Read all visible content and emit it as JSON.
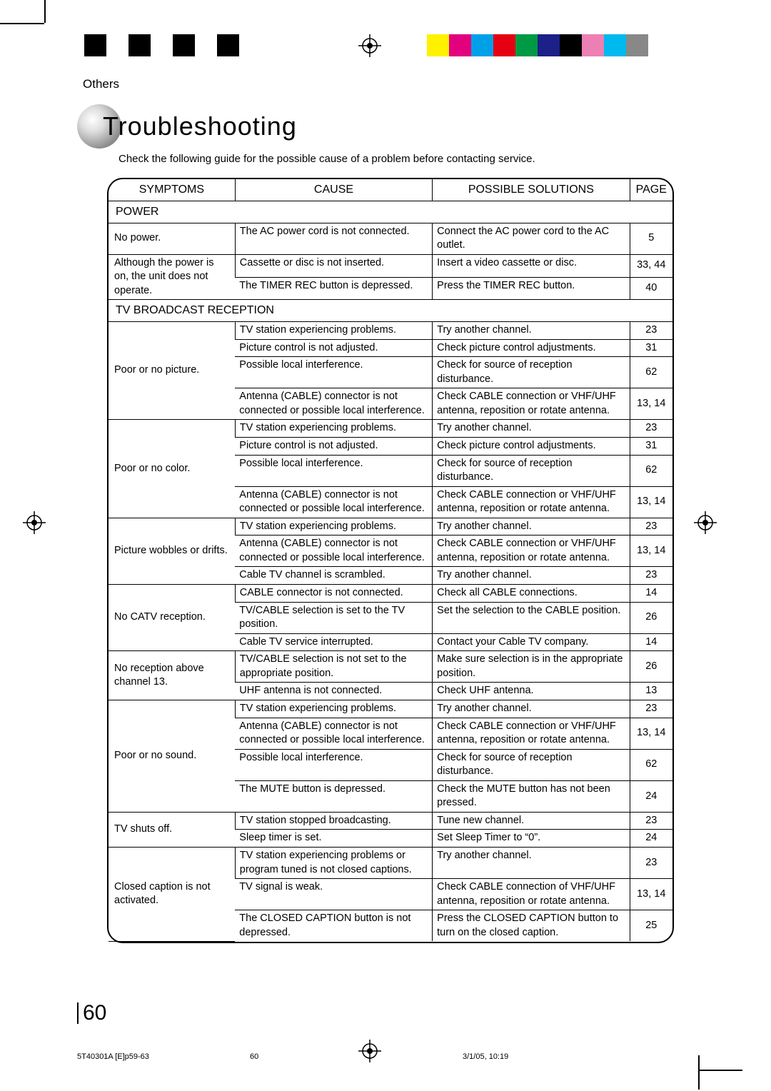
{
  "section_label": "Others",
  "title": "Troubleshooting",
  "intro": "Check the following guide for the possible cause of a problem before contacting service.",
  "headers": {
    "symptoms": "SYMPTOMS",
    "cause": "CAUSE",
    "solutions": "POSSIBLE SOLUTIONS",
    "page": "PAGE"
  },
  "sections": [
    {
      "name": "POWER",
      "rows": [
        {
          "symptom": "No power.",
          "symptom_rowspan": 1,
          "cause": "The AC power cord is not connected.",
          "solution": "Connect the AC power cord to the AC outlet.",
          "page": "5"
        },
        {
          "symptom": "Although the power is on, the unit does not operate.",
          "symptom_rowspan": 2,
          "cause": "Cassette or disc is not inserted.",
          "solution": "Insert a video cassette or disc.",
          "page": "33, 44"
        },
        {
          "cause": "The TIMER REC button is depressed.",
          "solution": "Press the TIMER REC button.",
          "page": "40"
        }
      ]
    },
    {
      "name": "TV BROADCAST RECEPTION",
      "rows": [
        {
          "symptom": "Poor or no picture.",
          "symptom_rowspan": 4,
          "cause": "TV station experiencing problems.",
          "solution": "Try another channel.",
          "page": "23"
        },
        {
          "cause": "Picture control is not adjusted.",
          "solution": "Check picture control adjustments.",
          "page": "31"
        },
        {
          "cause": "Possible local interference.",
          "solution": "Check for source of reception disturbance.",
          "page": "62"
        },
        {
          "cause": "Antenna (CABLE) connector is not connected or possible local interference.",
          "solution": "Check CABLE connection or VHF/UHF antenna, reposition or rotate antenna.",
          "page": "13, 14"
        },
        {
          "symptom": "Poor or no color.",
          "symptom_rowspan": 4,
          "cause": "TV station experiencing problems.",
          "solution": "Try another channel.",
          "page": "23"
        },
        {
          "cause": "Picture control is not adjusted.",
          "solution": "Check picture control adjustments.",
          "page": "31"
        },
        {
          "cause": "Possible local interference.",
          "solution": "Check for source of reception disturbance.",
          "page": "62"
        },
        {
          "cause": "Antenna (CABLE) connector is not connected or possible local interference.",
          "solution": "Check CABLE connection or VHF/UHF antenna, reposition or rotate antenna.",
          "page": "13, 14"
        },
        {
          "symptom": "Picture wobbles or drifts.",
          "symptom_rowspan": 3,
          "cause": "TV station experiencing problems.",
          "solution": "Try another channel.",
          "page": "23"
        },
        {
          "cause": "Antenna (CABLE) connector is not connected or possible local interference.",
          "solution": "Check CABLE connection or VHF/UHF antenna, reposition or rotate antenna.",
          "page": "13, 14"
        },
        {
          "cause": "Cable TV channel is scrambled.",
          "solution": "Try another channel.",
          "page": "23"
        },
        {
          "symptom": "No CATV reception.",
          "symptom_rowspan": 3,
          "cause": "CABLE connector is not connected.",
          "solution": "Check all CABLE connections.",
          "page": "14"
        },
        {
          "cause": "TV/CABLE selection is set to the TV position.",
          "solution": "Set the selection to the CABLE position.",
          "page": "26"
        },
        {
          "cause": "Cable TV service interrupted.",
          "solution": "Contact your Cable TV company.",
          "page": "14"
        },
        {
          "symptom": "No reception above channel 13.",
          "symptom_rowspan": 2,
          "cause": "TV/CABLE selection is not set to the appropriate position.",
          "solution": "Make sure selection is in the appropriate position.",
          "page": "26"
        },
        {
          "cause": "UHF antenna is not connected.",
          "solution": "Check UHF antenna.",
          "page": "13"
        },
        {
          "symptom": "Poor or no sound.",
          "symptom_rowspan": 4,
          "cause": "TV station experiencing problems.",
          "solution": "Try another channel.",
          "page": "23"
        },
        {
          "cause": "Antenna (CABLE) connector is not connected or possible local interference.",
          "solution": "Check CABLE connection or VHF/UHF antenna, reposition or rotate antenna.",
          "page": "13, 14"
        },
        {
          "cause": "Possible local interference.",
          "solution": "Check for source of reception disturbance.",
          "page": "62"
        },
        {
          "cause": "The MUTE button is depressed.",
          "solution": "Check the MUTE button has not been pressed.",
          "page": "24"
        },
        {
          "symptom": "TV shuts off.",
          "symptom_rowspan": 2,
          "cause": "TV station stopped broadcasting.",
          "solution": "Tune new channel.",
          "page": "23"
        },
        {
          "cause": "Sleep timer is set.",
          "solution": "Set Sleep Timer to “0”.",
          "page": "24"
        },
        {
          "symptom": "Closed caption is not activated.",
          "symptom_rowspan": 3,
          "cause": "TV station experiencing problems or program tuned is not closed captions.",
          "solution": "Try another channel.",
          "page": "23"
        },
        {
          "cause": "TV signal is weak.",
          "solution": "Check CABLE connection of VHF/UHF antenna, reposition or rotate antenna.",
          "page": "13, 14"
        },
        {
          "cause": "The CLOSED CAPTION button is not depressed.",
          "solution": "Press the CLOSED CAPTION button to turn on the closed caption.",
          "page": "25",
          "last": true
        }
      ]
    }
  ],
  "page_number": "60",
  "footer": {
    "left": "5T40301A [E]p59-63",
    "mid": "60",
    "right": "3/1/05, 10:19"
  },
  "print_bars": {
    "gray": [
      "#000000",
      "#ffffff",
      "#000000",
      "#ffffff",
      "#000000",
      "#ffffff",
      "#000000"
    ],
    "color": [
      "#fff100",
      "#e3007f",
      "#00a0e9",
      "#e50012",
      "#009944",
      "#1d2087",
      "#000000",
      "#ec80b4",
      "#00b9ef",
      "#888888"
    ]
  }
}
